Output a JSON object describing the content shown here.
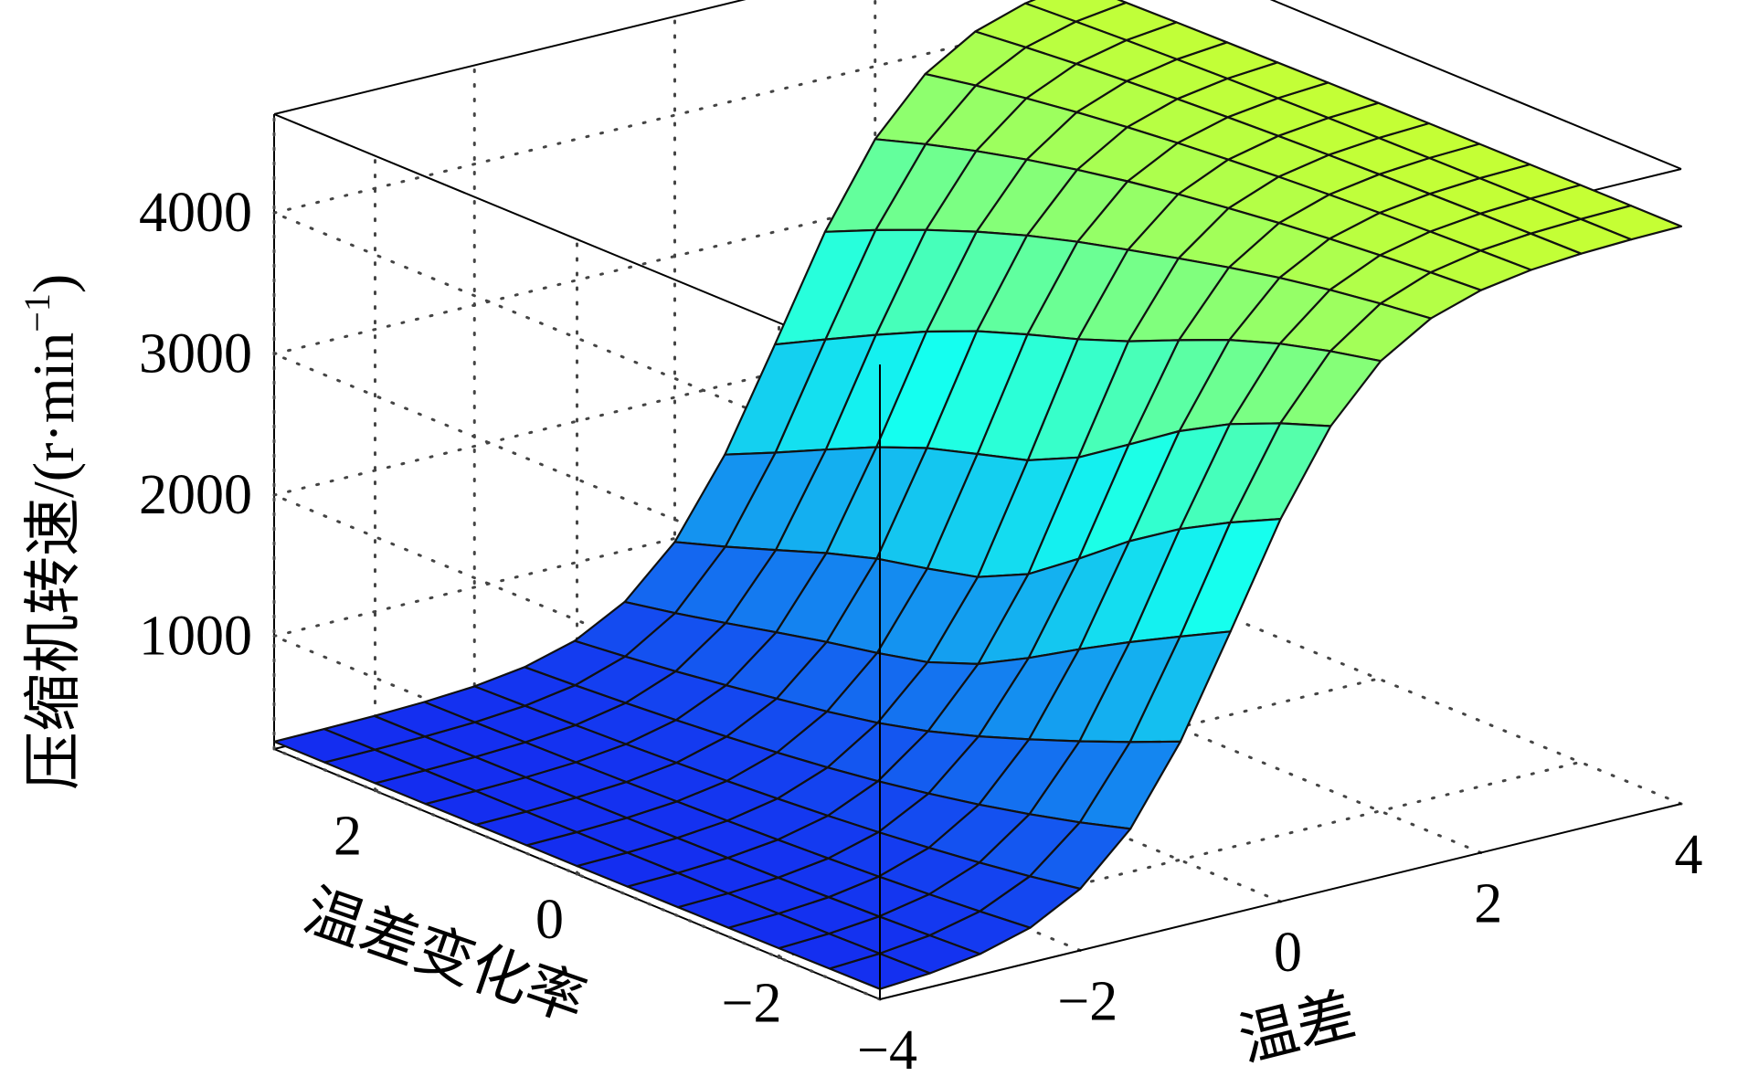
{
  "chart_data": {
    "type": "surface",
    "title": "",
    "xlabel": "温差",
    "ylabel": "温差变化率",
    "zlabel": "压缩机转速/(r·min",
    "zlabel_exponent": "−1",
    "zlabel_close": ")",
    "xlim": [
      -4,
      4
    ],
    "ylim": [
      -3,
      3
    ],
    "zlim": [
      200,
      4700
    ],
    "x_ticks": [
      -4,
      -2,
      0,
      2,
      4
    ],
    "x_tick_labels": [
      "−4",
      "−2",
      "0",
      "2",
      "4"
    ],
    "y_ticks": [
      -2,
      0,
      2
    ],
    "y_tick_labels": [
      "−2",
      "0",
      "2"
    ],
    "z_ticks": [
      1000,
      2000,
      3000,
      4000
    ],
    "z_tick_labels": [
      "1000",
      "2000",
      "3000",
      "4000"
    ],
    "grid": true,
    "colormap": [
      "#0000ff",
      "#00ffff",
      "#ffff00"
    ],
    "surface_rule": "speed rises sigmoidally with 温差 from ~250 at 温差=-4 to ~4300 at 温差=4; slight rise with 温差变化率",
    "grid_x": [
      -4,
      -3.5,
      -3,
      -2.5,
      -2,
      -1.5,
      -1,
      -0.5,
      0,
      0.5,
      1,
      1.5,
      2,
      2.5,
      3,
      3.5,
      4
    ],
    "grid_y": [
      -3,
      -2.5,
      -2,
      -1.5,
      -1,
      -0.5,
      0,
      0.5,
      1,
      1.5,
      2,
      2.5,
      3
    ]
  }
}
